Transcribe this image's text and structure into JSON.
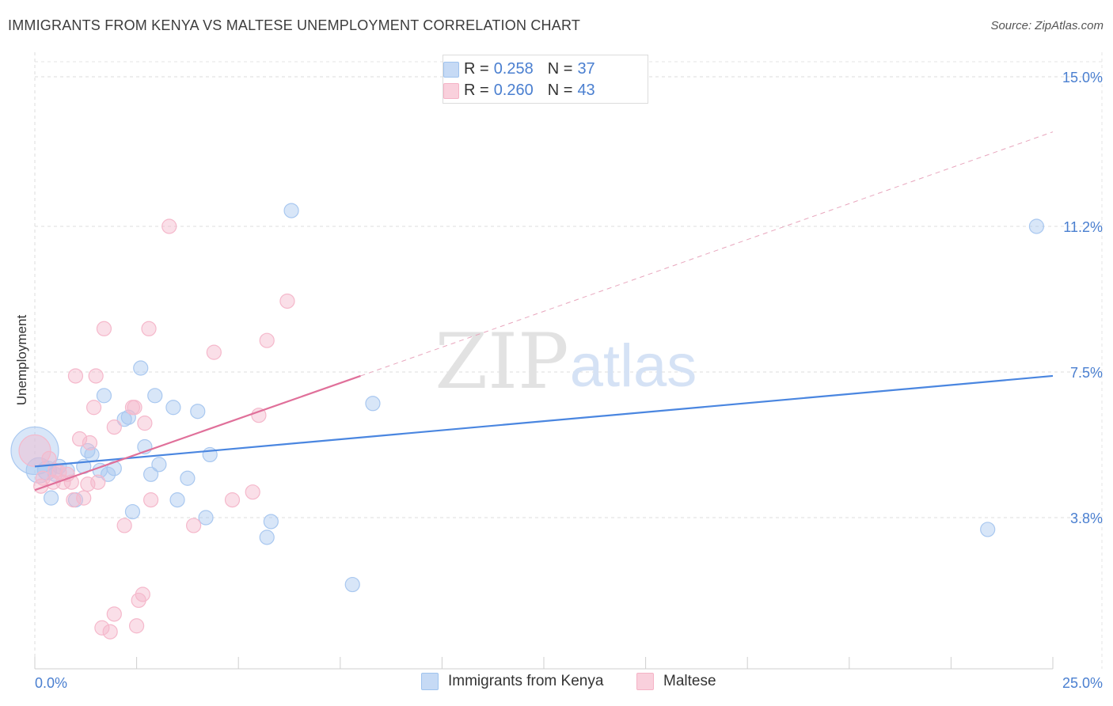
{
  "header": {
    "title": "IMMIGRANTS FROM KENYA VS MALTESE UNEMPLOYMENT CORRELATION CHART",
    "source": "Source: ZipAtlas.com"
  },
  "watermark": {
    "zip": "ZIP",
    "atlas": "atlas"
  },
  "legend_top": {
    "rows": [
      {
        "r_label": "R =",
        "r_value": "0.258",
        "n_label": "N =",
        "n_value": "37",
        "color": "#9fc3ee"
      },
      {
        "r_label": "R =",
        "r_value": "0.260",
        "n_label": "N =",
        "n_value": "43",
        "color": "#f5b3c6"
      }
    ]
  },
  "legend_bottom": {
    "items": [
      {
        "label": "Immigrants from Kenya",
        "color": "#9fc3ee"
      },
      {
        "label": "Maltese",
        "color": "#f5b3c6"
      }
    ]
  },
  "chart_data": {
    "type": "scatter",
    "title": "IMMIGRANTS FROM KENYA VS MALTESE UNEMPLOYMENT CORRELATION CHART",
    "xlabel": "",
    "ylabel": "Unemployment",
    "xlim": [
      0,
      25
    ],
    "ylim": [
      0,
      15.5
    ],
    "x_tick_labels": [
      "0.0%",
      "25.0%"
    ],
    "y_ticks": [
      3.8,
      7.5,
      11.2,
      15.0
    ],
    "y_tick_labels": [
      "3.8%",
      "7.5%",
      "11.2%",
      "15.0%"
    ],
    "series": [
      {
        "name": "Immigrants from Kenya",
        "color": "#4a86e0",
        "fill": "#a9c8f0",
        "r": 0.258,
        "n": 37,
        "trend": {
          "x0": 0,
          "y0": 5.1,
          "x1": 25,
          "y1": 7.4
        },
        "points": [
          [
            0.0,
            5.5,
            30
          ],
          [
            0.1,
            5.0,
            16
          ],
          [
            0.3,
            5.0,
            12
          ],
          [
            0.4,
            4.3,
            9
          ],
          [
            0.5,
            4.9,
            9
          ],
          [
            0.6,
            5.1,
            9
          ],
          [
            0.8,
            5.0,
            9
          ],
          [
            1.0,
            4.25,
            9
          ],
          [
            1.2,
            5.1,
            9
          ],
          [
            1.3,
            5.5,
            9
          ],
          [
            1.4,
            5.4,
            9
          ],
          [
            1.6,
            5.0,
            9
          ],
          [
            1.7,
            6.9,
            9
          ],
          [
            1.8,
            4.9,
            9
          ],
          [
            1.95,
            5.05,
            9
          ],
          [
            2.2,
            6.3,
            9
          ],
          [
            2.3,
            6.35,
            9
          ],
          [
            2.4,
            3.95,
            9
          ],
          [
            2.6,
            7.6,
            9
          ],
          [
            2.7,
            5.6,
            9
          ],
          [
            2.85,
            4.9,
            9
          ],
          [
            2.95,
            6.9,
            9
          ],
          [
            3.05,
            5.15,
            9
          ],
          [
            3.4,
            6.6,
            9
          ],
          [
            3.5,
            4.25,
            9
          ],
          [
            3.75,
            4.8,
            9
          ],
          [
            4.0,
            6.5,
            9
          ],
          [
            4.2,
            3.8,
            9
          ],
          [
            4.3,
            5.4,
            9
          ],
          [
            5.7,
            3.3,
            9
          ],
          [
            5.8,
            3.7,
            9
          ],
          [
            6.3,
            11.6,
            9
          ],
          [
            7.8,
            2.1,
            9
          ],
          [
            8.3,
            6.7,
            9
          ],
          [
            23.4,
            3.5,
            9
          ],
          [
            24.6,
            11.2,
            9
          ]
        ]
      },
      {
        "name": "Maltese",
        "color": "#e0709a",
        "fill": "#f5b8cb",
        "r": 0.26,
        "n": 43,
        "trend": {
          "x0": 0,
          "y0": 4.5,
          "x1": 8.0,
          "y1": 7.4
        },
        "trend_dashed": {
          "x0": 8.0,
          "y0": 7.4,
          "x1": 25,
          "y1": 13.6
        },
        "points": [
          [
            0.0,
            5.5,
            20
          ],
          [
            0.15,
            4.6,
            9
          ],
          [
            0.2,
            4.8,
            9
          ],
          [
            0.35,
            5.3,
            9
          ],
          [
            0.45,
            4.7,
            9
          ],
          [
            0.5,
            5.0,
            9
          ],
          [
            0.6,
            4.95,
            9
          ],
          [
            0.7,
            4.7,
            9
          ],
          [
            0.8,
            4.9,
            9
          ],
          [
            0.9,
            4.7,
            9
          ],
          [
            0.95,
            4.25,
            9
          ],
          [
            1.0,
            7.4,
            9
          ],
          [
            1.1,
            5.8,
            9
          ],
          [
            1.2,
            4.3,
            9
          ],
          [
            1.3,
            4.65,
            9
          ],
          [
            1.35,
            5.7,
            9
          ],
          [
            1.45,
            6.6,
            9
          ],
          [
            1.5,
            7.4,
            9
          ],
          [
            1.55,
            4.7,
            9
          ],
          [
            1.7,
            8.6,
            9
          ],
          [
            1.65,
            1.0,
            9
          ],
          [
            1.85,
            0.9,
            9
          ],
          [
            1.95,
            1.35,
            9
          ],
          [
            1.95,
            6.1,
            9
          ],
          [
            2.2,
            3.6,
            9
          ],
          [
            2.4,
            6.6,
            9
          ],
          [
            2.45,
            6.6,
            9
          ],
          [
            2.5,
            1.05,
            9
          ],
          [
            2.55,
            1.7,
            9
          ],
          [
            2.65,
            1.85,
            9
          ],
          [
            2.7,
            6.2,
            9
          ],
          [
            2.8,
            8.6,
            9
          ],
          [
            2.85,
            4.25,
            9
          ],
          [
            3.3,
            11.2,
            9
          ],
          [
            3.9,
            3.6,
            9
          ],
          [
            4.4,
            8.0,
            9
          ],
          [
            4.85,
            4.25,
            9
          ],
          [
            5.35,
            4.45,
            9
          ],
          [
            5.5,
            6.4,
            9
          ],
          [
            5.7,
            8.3,
            9
          ],
          [
            6.2,
            9.3,
            9
          ]
        ]
      }
    ]
  }
}
